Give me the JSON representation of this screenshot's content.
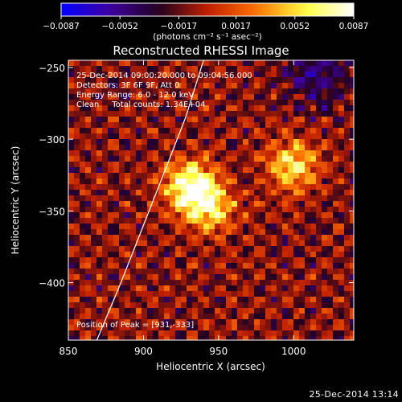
{
  "chart_data": {
    "type": "heatmap",
    "title": "Reconstructed RHESSI Image",
    "xlabel": "Heliocentric X (arcsec)",
    "ylabel": "Heliocentric Y (arcsec)",
    "xlim": [
      850,
      1040
    ],
    "ylim": [
      -440,
      -245
    ],
    "x_ticks": [
      850,
      900,
      950,
      1000
    ],
    "x_tick_labels": [
      "850",
      "900",
      "950",
      "1000"
    ],
    "y_ticks": [
      -250,
      -300,
      -350,
      -400
    ],
    "y_tick_labels": [
      "−250",
      "−300",
      "−350",
      "−400"
    ],
    "colorbar": {
      "min": -0.0087,
      "max": 0.0087,
      "ticks": [
        -0.0087,
        -0.0052,
        -0.0017,
        0.0017,
        0.0052,
        0.0087
      ],
      "tick_labels": [
        "−0.0087",
        "−0.0052",
        "−0.0017",
        "0.0017",
        "0.0052",
        "0.0087"
      ],
      "unit_label": "(photons cm⁻² s⁻¹ asec⁻²)",
      "colormap": [
        "#0000ff",
        "#4000a0",
        "#200020",
        "#c02000",
        "#ff7000",
        "#ffff40",
        "#ffffff"
      ]
    },
    "annotations": [
      "25-Dec-2014 09:00:20.000 to 09:04:56.000",
      "Detectors: 3F 6F 9F, Att 0",
      "Energy Range: 6.0 - 12.0 keV",
      "Clean     Total counts: 1.34E+04"
    ],
    "peak_label": "Position of Peak = [931,-333]",
    "sources": [
      {
        "x": 931,
        "y": -333,
        "intensity": 0.0087
      },
      {
        "x": 1000,
        "y": -318,
        "intensity": 0.0062
      },
      {
        "x": 945,
        "y": -348,
        "intensity": 0.0055
      }
    ],
    "limb_curve": [
      [
        869,
        -440
      ],
      [
        885,
        -400
      ],
      [
        900,
        -360
      ],
      [
        915,
        -320
      ],
      [
        928,
        -285
      ],
      [
        940,
        -245
      ]
    ],
    "grid": false,
    "legend": "none"
  },
  "footer": {
    "timestamp": "25-Dec-2014 13:14"
  }
}
